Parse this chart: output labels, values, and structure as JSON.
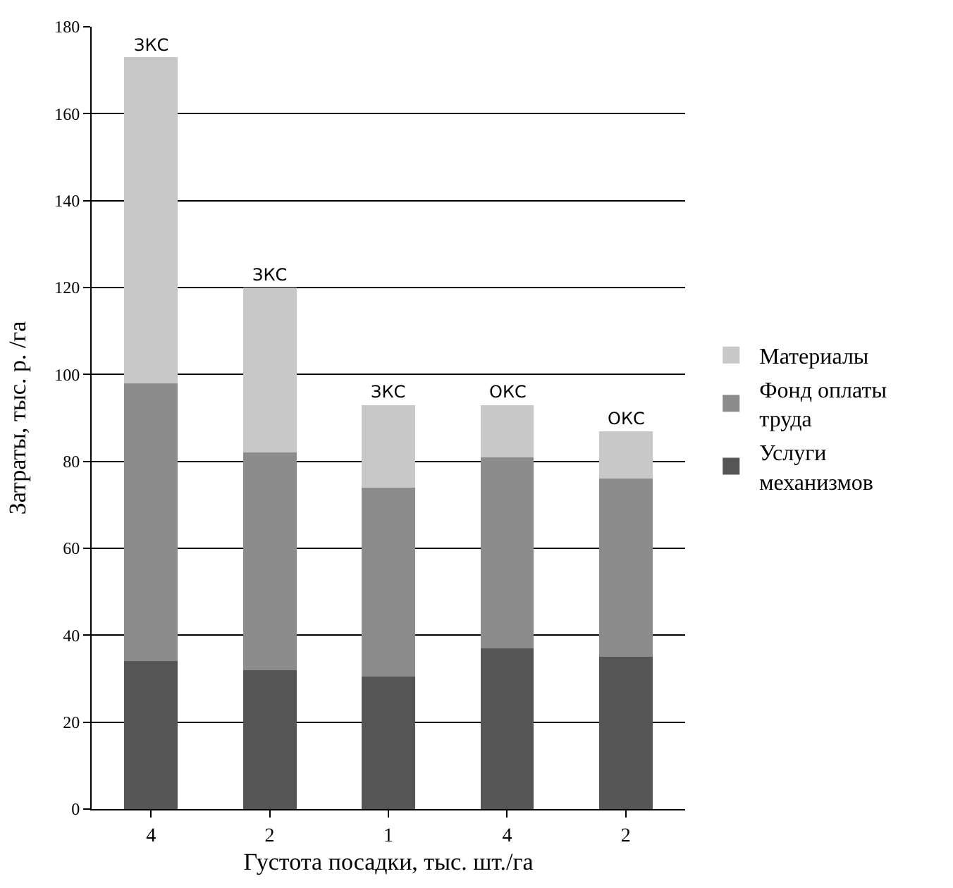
{
  "chart_data": {
    "type": "bar",
    "stacked": true,
    "xlabel": "Густота посадки, тыс. шт./га",
    "ylabel": "Затраты, тыс. р. /га",
    "categories": [
      "4",
      "2",
      "1",
      "4",
      "2"
    ],
    "series": [
      {
        "name": "Услуги механизмов",
        "color": "#555555",
        "values": [
          34,
          32,
          30.5,
          37,
          35
        ]
      },
      {
        "name": "Фонд оплаты труда",
        "color": "#8c8c8c",
        "values": [
          64,
          50,
          43.5,
          44,
          41
        ]
      },
      {
        "name": "Материалы",
        "color": "#c8c8c8",
        "values": [
          75,
          38,
          19,
          12,
          11
        ]
      }
    ],
    "annotations": [
      {
        "text": "ЗКС",
        "y": 173
      },
      {
        "text": "ЗКС",
        "y": 120
      },
      {
        "text": "ЗКС",
        "y": 93
      },
      {
        "text": "ОКС",
        "y": 93
      },
      {
        "text": "ОКС",
        "y": 87
      }
    ],
    "ylim": [
      0,
      180
    ],
    "yticks": [
      0,
      20,
      40,
      60,
      80,
      100,
      120,
      140,
      160,
      180
    ],
    "grid": "y",
    "legend": "right"
  }
}
